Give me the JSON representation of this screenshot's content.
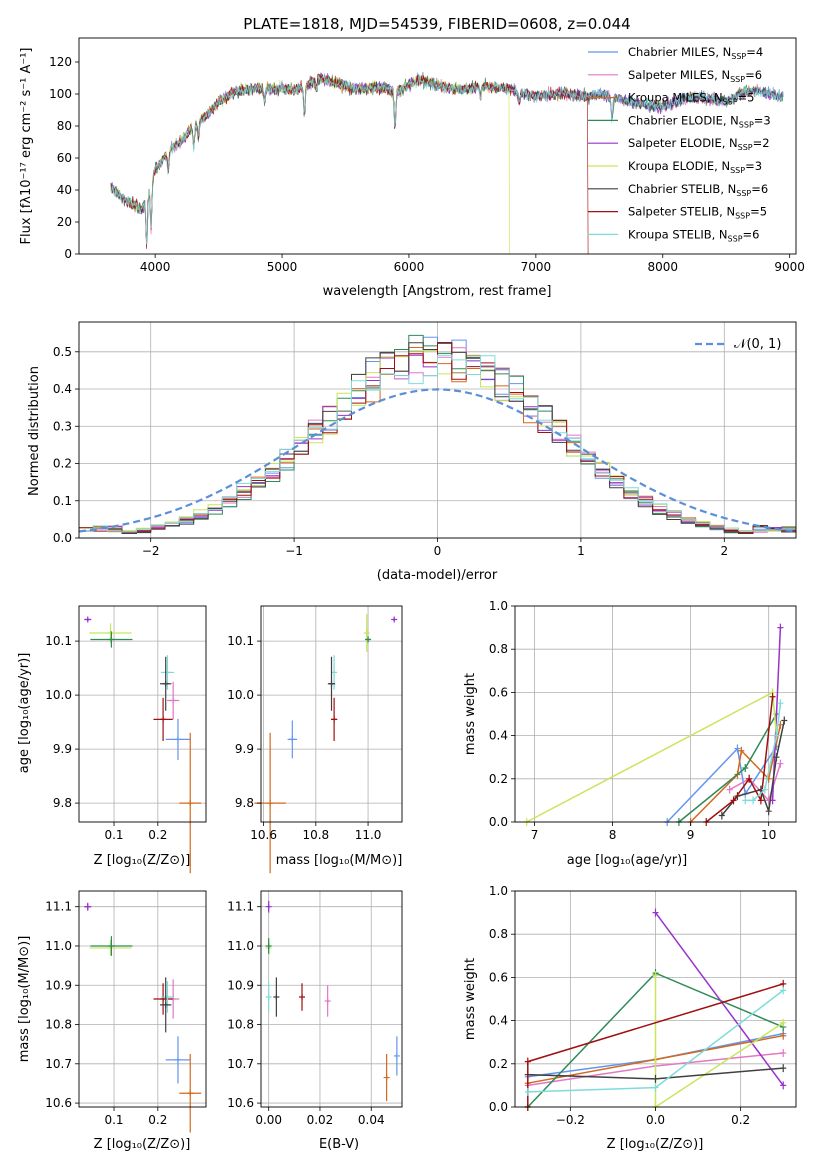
{
  "colors": {
    "chabrier_miles": "#6495ed",
    "salpeter_miles": "#e377c2",
    "kroupa_miles": "#d2691e",
    "chabrier_elodie": "#2e8b57",
    "salpeter_elodie": "#9932cc",
    "kroupa_elodie": "#c8e65a",
    "chabrier_stelib": "#404040",
    "salpeter_stelib": "#a01010",
    "kroupa_stelib": "#7fdbdb",
    "normal": "#5b8fd9",
    "grid": "#b0b0b0"
  },
  "series_labels": [
    {
      "key": "chabrier_miles",
      "text": "Chabrier MILES, N",
      "sub": "SSP",
      "suffix": "=4"
    },
    {
      "key": "salpeter_miles",
      "text": "Salpeter MILES, N",
      "sub": "SSP",
      "suffix": "=6"
    },
    {
      "key": "kroupa_miles",
      "text": "Kroupa MILES, N",
      "sub": "SSP",
      "suffix": "=5"
    },
    {
      "key": "chabrier_elodie",
      "text": "Chabrier ELODIE, N",
      "sub": "SSP",
      "suffix": "=3"
    },
    {
      "key": "salpeter_elodie",
      "text": "Salpeter ELODIE, N",
      "sub": "SSP",
      "suffix": "=2"
    },
    {
      "key": "kroupa_elodie",
      "text": "Kroupa ELODIE, N",
      "sub": "SSP",
      "suffix": "=3"
    },
    {
      "key": "chabrier_stelib",
      "text": "Chabrier STELIB, N",
      "sub": "SSP",
      "suffix": "=6"
    },
    {
      "key": "salpeter_stelib",
      "text": "Salpeter STELIB, N",
      "sub": "SSP",
      "suffix": "=5"
    },
    {
      "key": "kroupa_stelib",
      "text": "Kroupa STELIB, N",
      "sub": "SSP",
      "suffix": "=6"
    }
  ],
  "chart_data": [
    {
      "id": "spectrum",
      "type": "line",
      "title": "PLATE=1818, MJD=54539, FIBERID=0608, z=0.044",
      "xlabel": "wavelength [Angstrom, rest frame]",
      "ylabel": "Flux [fλ10⁻¹⁷ erg cm⁻² s⁻¹ A⁻¹]",
      "xlim": [
        3400,
        9050
      ],
      "ylim": [
        0,
        135
      ],
      "xticks": [
        4000,
        5000,
        6000,
        7000,
        8000,
        9000
      ],
      "yticks": [
        0,
        20,
        40,
        60,
        80,
        100,
        120
      ],
      "continuum": [
        [
          3650,
          42
        ],
        [
          3700,
          38
        ],
        [
          3780,
          33
        ],
        [
          3850,
          30
        ],
        [
          3900,
          28
        ],
        [
          3950,
          40
        ],
        [
          4000,
          52
        ],
        [
          4100,
          64
        ],
        [
          4200,
          70
        ],
        [
          4300,
          80
        ],
        [
          4400,
          86
        ],
        [
          4500,
          95
        ],
        [
          4600,
          100
        ],
        [
          4700,
          103
        ],
        [
          4800,
          104
        ],
        [
          4900,
          103
        ],
        [
          5000,
          104
        ],
        [
          5100,
          102
        ],
        [
          5200,
          106
        ],
        [
          5300,
          110
        ],
        [
          5400,
          107
        ],
        [
          5500,
          105
        ],
        [
          5600,
          103
        ],
        [
          5700,
          104
        ],
        [
          5800,
          104
        ],
        [
          5900,
          101
        ],
        [
          6000,
          106
        ],
        [
          6100,
          109
        ],
        [
          6200,
          106
        ],
        [
          6300,
          104
        ],
        [
          6400,
          103
        ],
        [
          6500,
          104
        ],
        [
          6600,
          105
        ],
        [
          6700,
          104
        ],
        [
          6800,
          103
        ],
        [
          6900,
          100
        ],
        [
          7000,
          99
        ],
        [
          7100,
          99
        ],
        [
          7200,
          101
        ],
        [
          7300,
          99
        ],
        [
          7400,
          98
        ],
        [
          7500,
          100
        ],
        [
          7600,
          98
        ],
        [
          7700,
          96
        ],
        [
          7800,
          94
        ],
        [
          7900,
          93
        ],
        [
          8000,
          92
        ],
        [
          8100,
          95
        ],
        [
          8200,
          98
        ],
        [
          8300,
          98
        ],
        [
          8400,
          97
        ],
        [
          8500,
          95
        ],
        [
          8600,
          100
        ],
        [
          8700,
          102
        ],
        [
          8800,
          101
        ],
        [
          8900,
          99
        ]
      ],
      "absorption_lines": [
        [
          3934,
          -30
        ],
        [
          3968,
          -28
        ],
        [
          4102,
          -12
        ],
        [
          4304,
          -14
        ],
        [
          4340,
          -10
        ],
        [
          4861,
          -8
        ],
        [
          5176,
          -18
        ],
        [
          5270,
          -6
        ],
        [
          5890,
          -22
        ],
        [
          6563,
          -6
        ],
        [
          6870,
          -6
        ],
        [
          7600,
          -14
        ]
      ],
      "gaps": [
        {
          "series": "kroupa_elodie",
          "start": 6790,
          "end": 9050
        },
        {
          "series": "salpeter_stelib",
          "start": 7410,
          "end": 9050
        }
      ]
    },
    {
      "id": "residual_hist",
      "type": "histogram",
      "xlabel": "(data-model)/error",
      "ylabel": "Normed distribution",
      "xlim": [
        -2.5,
        2.5
      ],
      "ylim": [
        0,
        0.58
      ],
      "xticks": [
        -2,
        -1,
        0,
        1,
        2
      ],
      "yticks": [
        0.0,
        0.1,
        0.2,
        0.3,
        0.4,
        0.5
      ],
      "legend": "𝒩(0, 1)",
      "bin_edges": [
        -2.5,
        2.5
      ],
      "bin_width": 0.1
    },
    {
      "id": "age_vs_z",
      "type": "errorbar",
      "xlabel": "Z [log₁₀(Z/Z⊙)]",
      "ylabel": "age  [log₁₀(age/yr)]",
      "xlim": [
        0.02,
        0.31
      ],
      "ylim": [
        9.765,
        10.165
      ],
      "xticks": [
        0.1,
        0.2
      ],
      "yticks": [
        9.8,
        9.9,
        10.0,
        10.1
      ],
      "points": [
        {
          "series": "salpeter_elodie",
          "x": 0.04,
          "y": 10.14,
          "xerr": 0.008,
          "yerr": 0.003
        },
        {
          "series": "kroupa_elodie",
          "x": 0.092,
          "y": 10.115,
          "xerr": 0.048,
          "yerr": 0.018
        },
        {
          "series": "chabrier_elodie",
          "x": 0.094,
          "y": 10.103,
          "xerr": 0.048,
          "yerr": 0.015
        },
        {
          "series": "kroupa_stelib",
          "x": 0.222,
          "y": 10.042,
          "xerr": 0.015,
          "yerr": 0.032
        },
        {
          "series": "chabrier_stelib",
          "x": 0.218,
          "y": 10.021,
          "xerr": 0.013,
          "yerr": 0.05
        },
        {
          "series": "salpeter_miles",
          "x": 0.235,
          "y": 9.99,
          "xerr": 0.014,
          "yerr": 0.035
        },
        {
          "series": "salpeter_stelib",
          "x": 0.212,
          "y": 9.955,
          "xerr": 0.022,
          "yerr": 0.04
        },
        {
          "series": "chabrier_miles",
          "x": 0.246,
          "y": 9.918,
          "xerr": 0.028,
          "yerr": 0.038
        },
        {
          "series": "kroupa_miles",
          "x": 0.274,
          "y": 9.8,
          "xerr": 0.025,
          "yerr": 0.13
        }
      ]
    },
    {
      "id": "age_vs_mass",
      "type": "errorbar",
      "xlabel": "mass [log₁₀(M/M⊙)]",
      "ylabel": "",
      "xlim": [
        10.59,
        11.13
      ],
      "ylim": [
        9.765,
        10.165
      ],
      "xticks": [
        10.6,
        10.8,
        11.0
      ],
      "yticks": [
        9.8,
        9.9,
        10.0,
        10.1
      ],
      "points": [
        {
          "series": "salpeter_elodie",
          "x": 11.1,
          "y": 10.14,
          "xerr": 0.005,
          "yerr": 0.003
        },
        {
          "series": "kroupa_elodie",
          "x": 10.995,
          "y": 10.115,
          "xerr": 0.005,
          "yerr": 0.035
        },
        {
          "series": "chabrier_elodie",
          "x": 11.0,
          "y": 10.103,
          "xerr": 0.01,
          "yerr": 0.005
        },
        {
          "series": "kroupa_stelib",
          "x": 10.87,
          "y": 10.042,
          "xerr": 0.01,
          "yerr": 0.032
        },
        {
          "series": "chabrier_stelib",
          "x": 10.86,
          "y": 10.021,
          "xerr": 0.014,
          "yerr": 0.05
        },
        {
          "series": "salpeter_stelib",
          "x": 10.87,
          "y": 9.955,
          "xerr": 0.012,
          "yerr": 0.04
        },
        {
          "series": "chabrier_miles",
          "x": 10.71,
          "y": 9.918,
          "xerr": 0.018,
          "yerr": 0.035
        },
        {
          "series": "kroupa_miles",
          "x": 10.625,
          "y": 9.8,
          "xerr": 0.06,
          "yerr": 0.13
        }
      ]
    },
    {
      "id": "weight_vs_age",
      "type": "line",
      "xlabel": "age  [log₁₀(age/yr)]",
      "ylabel": "mass weight",
      "xlim": [
        6.75,
        10.35
      ],
      "ylim": [
        0,
        1.0
      ],
      "xticks": [
        7,
        8,
        9,
        10
      ],
      "yticks": [
        0.0,
        0.2,
        0.4,
        0.6,
        0.8,
        1.0
      ],
      "series": [
        {
          "series": "chabrier_miles",
          "points": [
            [
              8.7,
              0.0
            ],
            [
              9.6,
              0.34
            ],
            [
              9.7,
              0.13
            ],
            [
              10.1,
              0.35
            ]
          ]
        },
        {
          "series": "salpeter_miles",
          "points": [
            [
              9.5,
              0.15
            ],
            [
              9.75,
              0.2
            ],
            [
              10.0,
              0.1
            ],
            [
              10.15,
              0.27
            ]
          ]
        },
        {
          "series": "kroupa_miles",
          "points": [
            [
              9.0,
              0.0
            ],
            [
              9.6,
              0.22
            ],
            [
              9.65,
              0.33
            ],
            [
              10.0,
              0.2
            ],
            [
              10.15,
              0.45
            ]
          ]
        },
        {
          "series": "chabrier_elodie",
          "points": [
            [
              8.85,
              0.0
            ],
            [
              9.7,
              0.25
            ],
            [
              10.1,
              0.5
            ]
          ]
        },
        {
          "series": "salpeter_elodie",
          "points": [
            [
              10.05,
              0.1
            ],
            [
              10.15,
              0.9
            ]
          ]
        },
        {
          "series": "kroupa_elodie",
          "points": [
            [
              6.9,
              0.0
            ],
            [
              10.05,
              0.6
            ],
            [
              10.1,
              0.4
            ]
          ]
        },
        {
          "series": "chabrier_stelib",
          "points": [
            [
              9.4,
              0.03
            ],
            [
              9.6,
              0.12
            ],
            [
              9.9,
              0.15
            ],
            [
              10.0,
              0.05
            ],
            [
              10.1,
              0.3
            ],
            [
              10.2,
              0.47
            ]
          ]
        },
        {
          "series": "salpeter_stelib",
          "points": [
            [
              9.2,
              0.0
            ],
            [
              9.55,
              0.1
            ],
            [
              9.75,
              0.2
            ],
            [
              9.9,
              0.1
            ],
            [
              10.05,
              0.58
            ]
          ]
        },
        {
          "series": "kroupa_stelib",
          "points": [
            [
              9.7,
              0.1
            ],
            [
              9.8,
              0.1
            ],
            [
              9.95,
              0.15
            ],
            [
              10.1,
              0.4
            ],
            [
              10.15,
              0.55
            ]
          ]
        }
      ]
    },
    {
      "id": "mass_vs_z",
      "type": "errorbar",
      "xlabel": "Z [log₁₀(Z/Z⊙)]",
      "ylabel": "mass [log₁₀(M/M⊙)]",
      "xlim": [
        0.02,
        0.31
      ],
      "ylim": [
        10.59,
        11.14
      ],
      "xticks": [
        0.1,
        0.2
      ],
      "yticks": [
        10.6,
        10.7,
        10.8,
        10.9,
        11.0,
        11.1
      ],
      "points": [
        {
          "series": "salpeter_elodie",
          "x": 0.04,
          "y": 11.1,
          "xerr": 0.008,
          "yerr": 0.01
        },
        {
          "series": "kroupa_elodie",
          "x": 0.092,
          "y": 10.995,
          "xerr": 0.048,
          "yerr": 0.02
        },
        {
          "series": "chabrier_elodie",
          "x": 0.094,
          "y": 11.0,
          "xerr": 0.048,
          "yerr": 0.025
        },
        {
          "series": "salpeter_miles",
          "x": 0.235,
          "y": 10.865,
          "xerr": 0.014,
          "yerr": 0.05
        },
        {
          "series": "salpeter_stelib",
          "x": 0.212,
          "y": 10.865,
          "xerr": 0.022,
          "yerr": 0.04
        },
        {
          "series": "kroupa_stelib",
          "x": 0.222,
          "y": 10.87,
          "xerr": 0.015,
          "yerr": 0.04
        },
        {
          "series": "chabrier_stelib",
          "x": 0.218,
          "y": 10.85,
          "xerr": 0.013,
          "yerr": 0.07
        },
        {
          "series": "chabrier_miles",
          "x": 0.246,
          "y": 10.71,
          "xerr": 0.028,
          "yerr": 0.06
        },
        {
          "series": "kroupa_miles",
          "x": 0.274,
          "y": 10.625,
          "xerr": 0.025,
          "yerr": 0.1
        }
      ]
    },
    {
      "id": "mass_vs_ebv",
      "type": "errorbar",
      "xlabel": "E(B-V)",
      "ylabel": "",
      "xlim": [
        -0.003,
        0.052
      ],
      "ylim": [
        10.59,
        11.14
      ],
      "xticks": [
        0.0,
        0.02,
        0.04
      ],
      "yticks": [
        10.6,
        10.7,
        10.8,
        10.9,
        11.0,
        11.1
      ],
      "points": [
        {
          "series": "salpeter_elodie",
          "x": 0.0,
          "y": 11.1,
          "xerr": 0.0,
          "yerr": 0.015
        },
        {
          "series": "kroupa_elodie",
          "x": 0.0,
          "y": 10.995,
          "xerr": 0.0,
          "yerr": 0.02
        },
        {
          "series": "chabrier_elodie",
          "x": 0.0,
          "y": 11.0,
          "xerr": 0.0,
          "yerr": 0.02
        },
        {
          "series": "kroupa_stelib",
          "x": 0.0,
          "y": 10.87,
          "xerr": 0.0,
          "yerr": 0.04
        },
        {
          "series": "chabrier_stelib",
          "x": 0.003,
          "y": 10.87,
          "xerr": 0.0,
          "yerr": 0.05
        },
        {
          "series": "salpeter_stelib",
          "x": 0.013,
          "y": 10.87,
          "xerr": 0.0,
          "yerr": 0.035
        },
        {
          "series": "salpeter_miles",
          "x": 0.023,
          "y": 10.86,
          "xerr": 0.0,
          "yerr": 0.04
        },
        {
          "series": "chabrier_miles",
          "x": 0.05,
          "y": 10.72,
          "xerr": 0.0,
          "yerr": 0.05
        },
        {
          "series": "kroupa_miles",
          "x": 0.046,
          "y": 10.665,
          "xerr": 0.0,
          "yerr": 0.06
        }
      ]
    },
    {
      "id": "weight_vs_z",
      "type": "line",
      "xlabel": "Z [log₁₀(Z/Z⊙)]",
      "ylabel": "mass weight",
      "xlim": [
        -0.33,
        0.33
      ],
      "ylim": [
        0,
        1.0
      ],
      "xticks": [
        -0.2,
        0.0,
        0.2
      ],
      "yticks": [
        0.0,
        0.2,
        0.4,
        0.6,
        0.8,
        1.0
      ],
      "series": [
        {
          "series": "chabrier_miles",
          "points": [
            [
              -0.3,
              0.14
            ],
            [
              0.0,
              0.22
            ],
            [
              0.3,
              0.34
            ]
          ]
        },
        {
          "series": "salpeter_miles",
          "points": [
            [
              -0.3,
              0.1
            ],
            [
              0.0,
              0.19
            ],
            [
              0.3,
              0.25
            ]
          ]
        },
        {
          "series": "kroupa_miles",
          "points": [
            [
              -0.3,
              0.11
            ],
            [
              0.0,
              0.22
            ],
            [
              0.3,
              0.33
            ]
          ]
        },
        {
          "series": "chabrier_elodie",
          "points": [
            [
              -0.3,
              0.0
            ],
            [
              0.0,
              0.62
            ],
            [
              0.3,
              0.37
            ]
          ]
        },
        {
          "series": "salpeter_elodie",
          "points": [
            [
              0.0,
              0.9
            ],
            [
              0.3,
              0.1
            ]
          ]
        },
        {
          "series": "kroupa_elodie",
          "points": [
            [
              0.0,
              0.61
            ],
            [
              0.0,
              0.0
            ],
            [
              0.3,
              0.39
            ]
          ]
        },
        {
          "series": "chabrier_stelib",
          "points": [
            [
              -0.3,
              0.15
            ],
            [
              0.0,
              0.13
            ],
            [
              0.3,
              0.18
            ]
          ]
        },
        {
          "series": "salpeter_stelib",
          "points": [
            [
              -0.3,
              0.0
            ],
            [
              -0.3,
              0.21
            ],
            [
              0.3,
              0.57
            ]
          ]
        },
        {
          "series": "kroupa_stelib",
          "points": [
            [
              -0.3,
              0.07
            ],
            [
              0.0,
              0.09
            ],
            [
              0.3,
              0.54
            ]
          ]
        }
      ]
    }
  ]
}
